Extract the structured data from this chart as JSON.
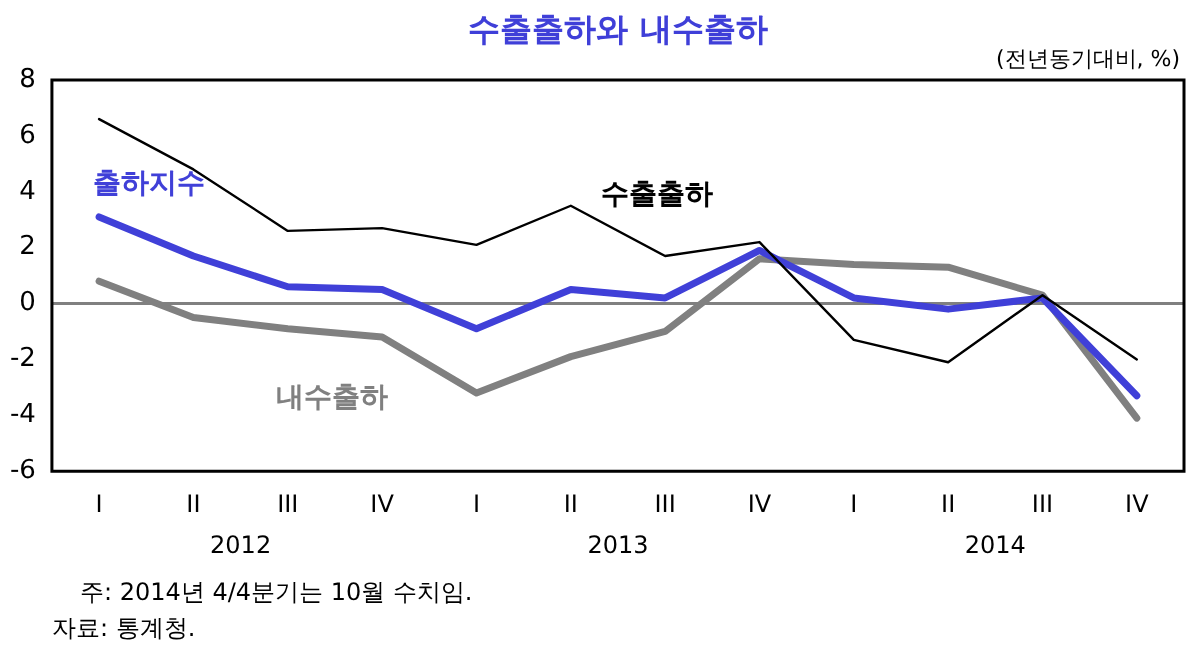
{
  "chart_data": {
    "type": "line",
    "title": "수출출하와 내수출하",
    "ylabel": "(전년동기대비, %)",
    "categories": [
      "I",
      "II",
      "III",
      "IV",
      "I",
      "II",
      "III",
      "IV",
      "I",
      "II",
      "III",
      "IV"
    ],
    "series": [
      {
        "name": "수출출하",
        "color": "#000000",
        "values": [
          6.6,
          4.8,
          2.6,
          2.7,
          2.1,
          3.5,
          1.7,
          2.2,
          -1.3,
          -2.1,
          0.3,
          -2.0
        ]
      },
      {
        "name": "출하지수",
        "color": "#4040d8",
        "values": [
          3.1,
          1.7,
          0.6,
          0.5,
          -0.9,
          0.5,
          0.2,
          1.9,
          0.2,
          -0.2,
          0.2,
          -3.3
        ]
      },
      {
        "name": "내수출하",
        "color": "#808080",
        "values": [
          0.8,
          -0.5,
          -0.9,
          -1.2,
          -3.2,
          -1.9,
          -1.0,
          1.6,
          1.4,
          1.3,
          0.3,
          -4.1
        ]
      }
    ],
    "ylim": [
      -6,
      8
    ],
    "yticks": [
      -6,
      -4,
      -2,
      0,
      2,
      4,
      6,
      8
    ],
    "grid": false,
    "legend": false,
    "marker": "none",
    "line_style": "solid",
    "ref_lines": [
      {
        "axis": "y",
        "value": 0,
        "color": "#808080"
      }
    ],
    "annotations": [
      "2012",
      "2013",
      "2014",
      "주: 2014년 4/4분기는 10월 수치임.",
      "자료: 통계청."
    ]
  }
}
